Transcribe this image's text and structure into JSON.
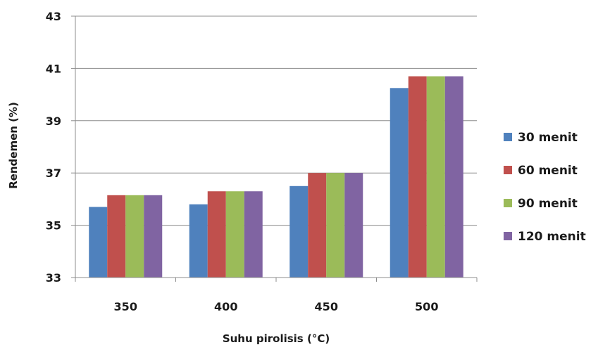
{
  "chart_data": {
    "type": "bar",
    "title": "",
    "xlabel": "Suhu pirolisis (°C)",
    "ylabel": "Rendemen (%)",
    "categories": [
      "350",
      "400",
      "450",
      "500"
    ],
    "ylim": [
      33,
      43
    ],
    "yticks": [
      33,
      35,
      37,
      39,
      41,
      43
    ],
    "grid": true,
    "legend_position": "right",
    "series": [
      {
        "name": "30 menit",
        "color": "#4F81BD",
        "values": [
          35.7,
          35.8,
          36.5,
          40.25
        ]
      },
      {
        "name": "60 menit",
        "color": "#C0504D",
        "values": [
          36.15,
          36.3,
          37.0,
          40.7
        ]
      },
      {
        "name": "90 menit",
        "color": "#9BBB59",
        "values": [
          36.15,
          36.3,
          37.0,
          40.7
        ]
      },
      {
        "name": "120 menit",
        "color": "#8064A2",
        "values": [
          36.15,
          36.3,
          37.0,
          40.7
        ]
      }
    ]
  }
}
